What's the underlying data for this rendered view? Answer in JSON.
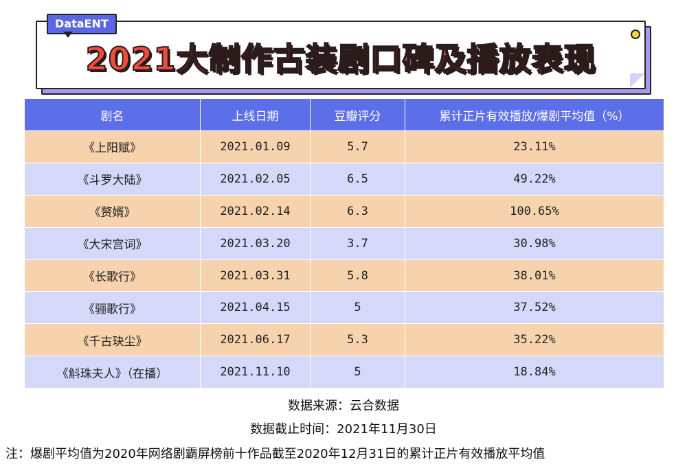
{
  "brand": "DataENT",
  "title": "2021大制作古装剧口碑及播放表现",
  "chart_data": {
    "type": "table",
    "title": "2021大制作古装剧口碑及播放表现",
    "columns": [
      "剧名",
      "上线日期",
      "豆瓣评分",
      "累计正片有效播放/爆剧平均值（%）"
    ],
    "rows": [
      {
        "name": "《上阳赋》",
        "date": "2021.01.09",
        "score": "5.7",
        "ratio": "23.11%"
      },
      {
        "name": "《斗罗大陆》",
        "date": "2021.02.05",
        "score": "6.5",
        "ratio": "49.22%"
      },
      {
        "name": "《赘婿》",
        "date": "2021.02.14",
        "score": "6.3",
        "ratio": "100.65%"
      },
      {
        "name": "《大宋宫词》",
        "date": "2021.03.20",
        "score": "3.7",
        "ratio": "30.98%"
      },
      {
        "name": "《长歌行》",
        "date": "2021.03.31",
        "score": "5.8",
        "ratio": "38.01%"
      },
      {
        "name": "《骊歌行》",
        "date": "2021.04.15",
        "score": "5",
        "ratio": "37.52%"
      },
      {
        "name": "《千古玦尘》",
        "date": "2021.06.17",
        "score": "5.3",
        "ratio": "35.22%"
      },
      {
        "name": "《斛珠夫人》（在播）",
        "date": "2021.11.10",
        "score": "5",
        "ratio": "18.84%"
      }
    ]
  },
  "notes": {
    "source": "数据来源：云合数据",
    "cutoff": "数据截止时间：2021年11月30日",
    "footnote": "注：爆剧平均值为2020年网络剧霸屏榜前十作品截至2020年12月31日的累计正片有效播放平均值"
  },
  "colors": {
    "header": "#5c6fe8",
    "row_odd": "#f7d3ad",
    "row_even": "#d5d8f9",
    "title": "#f04c3b",
    "badge": "#5b66e7"
  }
}
